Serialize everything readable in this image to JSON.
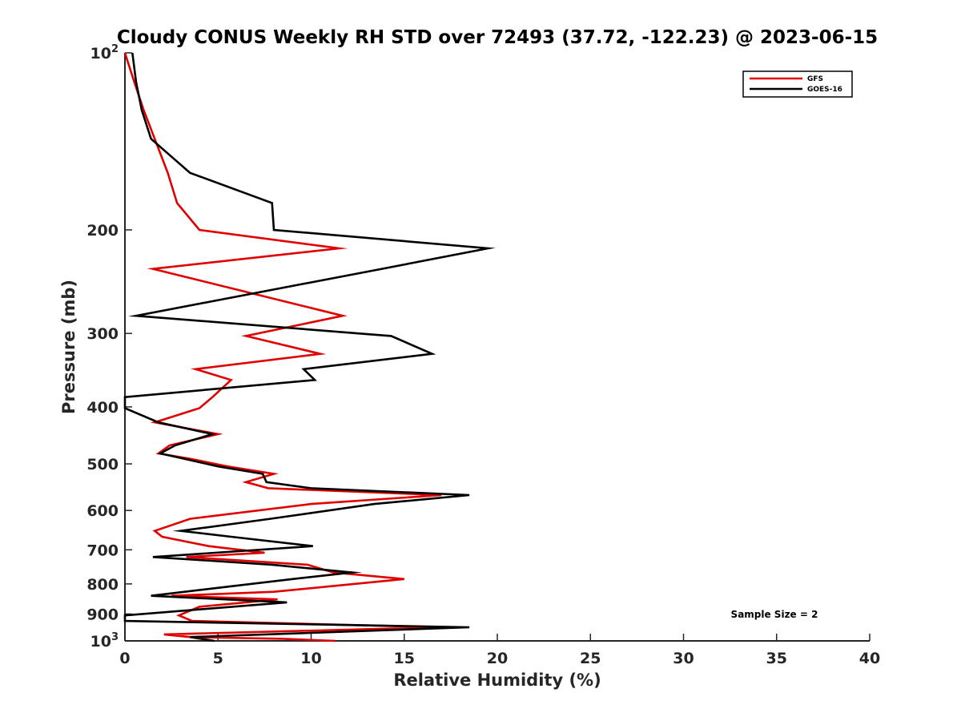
{
  "chart_data": {
    "type": "line",
    "title": "Cloudy CONUS Weekly RH STD over 72493 (37.72, -122.23) @ 2023-06-15",
    "xlabel": "Relative Humidity (%)",
    "ylabel": "Pressure (mb)",
    "xlim": [
      0,
      40
    ],
    "ylim": [
      100,
      1000
    ],
    "y_scale": "log",
    "y_reversed": true,
    "grid": false,
    "legend_position": "top-right",
    "x_ticks": [
      "0",
      "5",
      "10",
      "15",
      "20",
      "25",
      "30",
      "35",
      "40"
    ],
    "y_ticks": [
      {
        "value": 100,
        "base": "10",
        "exp": "2"
      },
      {
        "value": 200,
        "base": "200",
        "exp": ""
      },
      {
        "value": 300,
        "base": "300",
        "exp": ""
      },
      {
        "value": 400,
        "base": "400",
        "exp": ""
      },
      {
        "value": 500,
        "base": "500",
        "exp": ""
      },
      {
        "value": 600,
        "base": "600",
        "exp": ""
      },
      {
        "value": 700,
        "base": "700",
        "exp": ""
      },
      {
        "value": 800,
        "base": "800",
        "exp": ""
      },
      {
        "value": 900,
        "base": "900",
        "exp": ""
      },
      {
        "value": 1000,
        "base": "10",
        "exp": "3"
      }
    ],
    "annotation": "Sample Size = 2",
    "series": [
      {
        "name": "GFS",
        "color": "#e00000",
        "points": [
          [
            0.0,
            100
          ],
          [
            0.5,
            112
          ],
          [
            1.0,
            125
          ],
          [
            1.6,
            140
          ],
          [
            2.3,
            160
          ],
          [
            2.8,
            180
          ],
          [
            4.0,
            200
          ],
          [
            11.5,
            215
          ],
          [
            1.5,
            233
          ],
          [
            11.7,
            280
          ],
          [
            6.5,
            303
          ],
          [
            10.5,
            325
          ],
          [
            3.8,
            345
          ],
          [
            5.7,
            360
          ],
          [
            4.7,
            385
          ],
          [
            4.0,
            402
          ],
          [
            1.6,
            425
          ],
          [
            5.0,
            445
          ],
          [
            2.4,
            465
          ],
          [
            1.8,
            480
          ],
          [
            3.5,
            490
          ],
          [
            5.5,
            505
          ],
          [
            8.0,
            520
          ],
          [
            6.5,
            537
          ],
          [
            7.7,
            550
          ],
          [
            17.0,
            565
          ],
          [
            10.0,
            585
          ],
          [
            3.5,
            620
          ],
          [
            1.6,
            650
          ],
          [
            2.0,
            665
          ],
          [
            4.5,
            690
          ],
          [
            7.5,
            708
          ],
          [
            3.3,
            720
          ],
          [
            9.8,
            742
          ],
          [
            11.2,
            765
          ],
          [
            15.0,
            785
          ],
          [
            8.0,
            825
          ],
          [
            2.5,
            838
          ],
          [
            8.2,
            850
          ],
          [
            4.0,
            875
          ],
          [
            2.9,
            905
          ],
          [
            3.6,
            925
          ],
          [
            17.0,
            948
          ],
          [
            2.1,
            975
          ],
          [
            3.5,
            985
          ],
          [
            8.5,
            992
          ],
          [
            11.3,
            1000
          ]
        ]
      },
      {
        "name": "GOES-16",
        "color": "#000000",
        "points": [
          [
            0.4,
            100
          ],
          [
            0.6,
            112
          ],
          [
            0.9,
            125
          ],
          [
            1.4,
            140
          ],
          [
            3.5,
            160
          ],
          [
            7.9,
            180
          ],
          [
            8.0,
            200
          ],
          [
            19.5,
            215
          ],
          [
            13.8,
            233
          ],
          [
            0.6,
            280
          ],
          [
            14.3,
            303
          ],
          [
            16.5,
            325
          ],
          [
            9.6,
            345
          ],
          [
            10.2,
            360
          ],
          [
            0.0,
            385
          ],
          [
            0.0,
            402
          ],
          [
            1.8,
            425
          ],
          [
            4.7,
            445
          ],
          [
            2.7,
            465
          ],
          [
            1.9,
            480
          ],
          [
            5.0,
            505
          ],
          [
            7.4,
            520
          ],
          [
            7.6,
            537
          ],
          [
            10.0,
            550
          ],
          [
            18.5,
            565
          ],
          [
            13.4,
            585
          ],
          [
            7.8,
            620
          ],
          [
            3.0,
            650
          ],
          [
            5.7,
            665
          ],
          [
            10.1,
            690
          ],
          [
            1.5,
            720
          ],
          [
            7.9,
            742
          ],
          [
            12.2,
            765
          ],
          [
            9.0,
            785
          ],
          [
            1.4,
            838
          ],
          [
            8.7,
            860
          ],
          [
            0.0,
            905
          ],
          [
            0.0,
            925
          ],
          [
            18.5,
            948
          ],
          [
            3.5,
            985
          ],
          [
            4.8,
            1000
          ]
        ]
      }
    ]
  }
}
